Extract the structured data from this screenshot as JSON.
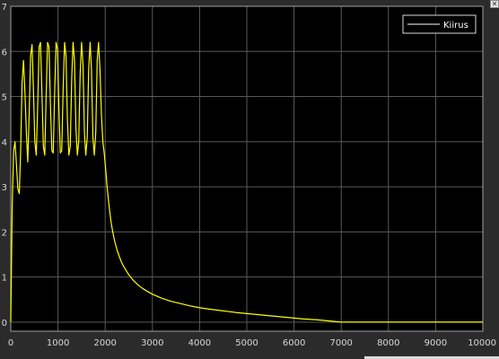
{
  "window": {
    "close_glyph": "✕",
    "background_color": "#2b2b2b",
    "plot_background_color": "#000000",
    "grid_color": "#5a5a5a",
    "axis_text_color": "#d8d8d8",
    "line_color": "#ffff00"
  },
  "chart_data": {
    "type": "line",
    "title": "",
    "xlabel": "",
    "ylabel": "",
    "xlim": [
      0,
      10000
    ],
    "ylim": [
      -0.2,
      7
    ],
    "xticks": [
      0,
      1000,
      2000,
      3000,
      4000,
      5000,
      6000,
      7000,
      8000,
      9000,
      10000
    ],
    "yticks": [
      0,
      1,
      2,
      3,
      4,
      5,
      6,
      7
    ],
    "grid": true,
    "legend_position": "top-right",
    "series": [
      {
        "name": "Kiirus",
        "color": "#ffff00",
        "x": [
          0,
          30,
          60,
          90,
          120,
          150,
          180,
          210,
          240,
          270,
          300,
          330,
          360,
          390,
          420,
          450,
          480,
          510,
          540,
          570,
          600,
          630,
          660,
          690,
          720,
          750,
          780,
          810,
          840,
          870,
          900,
          930,
          960,
          990,
          1020,
          1050,
          1080,
          1110,
          1140,
          1170,
          1200,
          1230,
          1260,
          1290,
          1320,
          1350,
          1380,
          1410,
          1440,
          1470,
          1500,
          1530,
          1560,
          1590,
          1620,
          1650,
          1680,
          1710,
          1740,
          1770,
          1800,
          1830,
          1860,
          1890,
          1920,
          1950,
          1980,
          2010,
          2040,
          2080,
          2120,
          2160,
          2200,
          2250,
          2300,
          2350,
          2400,
          2500,
          2600,
          2700,
          2800,
          2900,
          3000,
          3200,
          3400,
          3600,
          3800,
          4000,
          4200,
          4500,
          4800,
          5000,
          5200,
          5500,
          5800,
          6000,
          6200,
          6500,
          6800,
          7000,
          7200,
          7500,
          8000,
          8500,
          9000,
          9500,
          10000
        ],
        "values": [
          0,
          2.6,
          3.8,
          4.0,
          3.5,
          2.95,
          2.85,
          3.8,
          5.3,
          5.8,
          5.1,
          4.2,
          3.55,
          4.6,
          5.9,
          6.15,
          5.2,
          4.0,
          3.7,
          4.8,
          6.1,
          6.2,
          5.1,
          3.9,
          3.7,
          5.0,
          6.2,
          6.1,
          4.8,
          3.8,
          3.75,
          5.1,
          6.2,
          6.05,
          4.7,
          3.75,
          3.8,
          5.2,
          6.2,
          5.9,
          4.5,
          3.7,
          3.9,
          5.4,
          6.2,
          5.8,
          4.3,
          3.7,
          4.0,
          5.5,
          6.2,
          5.7,
          4.2,
          3.7,
          4.1,
          5.6,
          6.2,
          5.6,
          4.1,
          3.7,
          4.2,
          5.8,
          6.2,
          5.6,
          4.6,
          4.0,
          3.75,
          3.4,
          3.0,
          2.6,
          2.25,
          2.0,
          1.8,
          1.6,
          1.45,
          1.32,
          1.22,
          1.05,
          0.92,
          0.82,
          0.74,
          0.68,
          0.62,
          0.53,
          0.46,
          0.41,
          0.36,
          0.32,
          0.29,
          0.25,
          0.21,
          0.19,
          0.17,
          0.14,
          0.11,
          0.09,
          0.07,
          0.05,
          0.02,
          0.0,
          0.0,
          0.0,
          0.0,
          0.0,
          0.0,
          0.0,
          0.0
        ]
      }
    ]
  }
}
